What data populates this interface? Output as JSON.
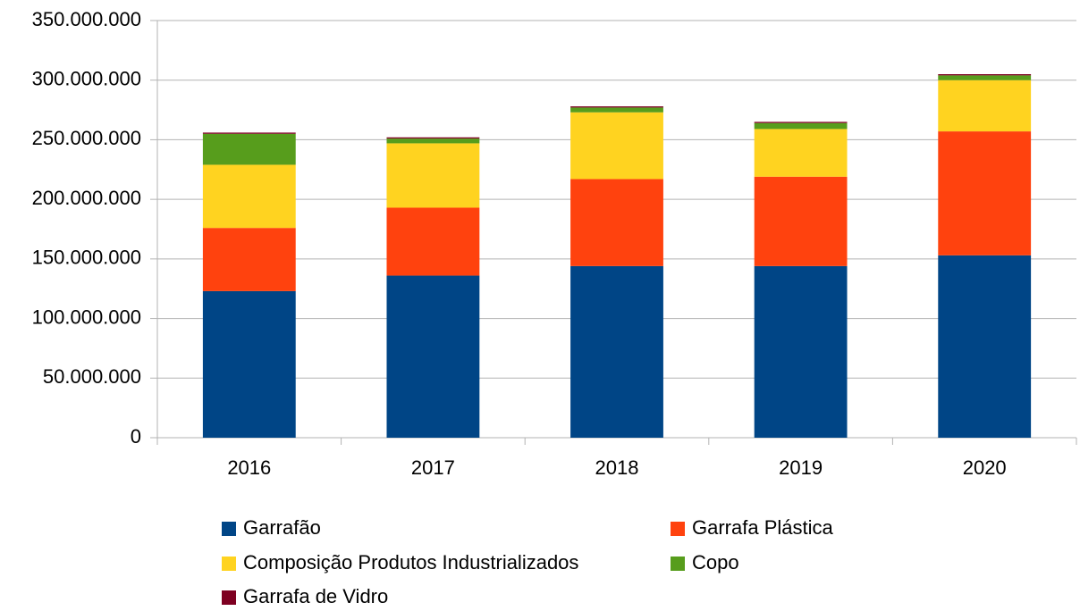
{
  "chart_data": {
    "type": "stacked_bar",
    "categories": [
      "2016",
      "2017",
      "2018",
      "2019",
      "2020"
    ],
    "series": [
      {
        "name": "Garrafão",
        "color": "#004586",
        "values": [
          123000000,
          136000000,
          144000000,
          144000000,
          153000000
        ]
      },
      {
        "name": "Garrafa Plástica",
        "color": "#ff420e",
        "values": [
          53000000,
          57000000,
          73000000,
          75000000,
          104000000
        ]
      },
      {
        "name": "Composição Produtos Industrializados",
        "color": "#ffd320",
        "values": [
          53000000,
          54000000,
          56000000,
          40000000,
          43000000
        ]
      },
      {
        "name": "Copo",
        "color": "#579d1c",
        "values": [
          26000000,
          4000000,
          4000000,
          5000000,
          4000000
        ]
      },
      {
        "name": "Garrafa de Vidro",
        "color": "#7e0021",
        "values": [
          1000000,
          1000000,
          1000000,
          1000000,
          1000000
        ]
      }
    ],
    "ylim": [
      0,
      350000000
    ],
    "yticks": [
      0,
      {
        "value": 50000000,
        "label": "50.000.000"
      },
      {
        "value": 100000000,
        "label": "100.000.000"
      },
      {
        "value": 150000000,
        "label": "150.000.000"
      },
      {
        "value": 200000000,
        "label": "200.000.000"
      },
      {
        "value": 250000000,
        "label": "250.000.000"
      },
      {
        "value": 300000000,
        "label": "300.000.000"
      },
      {
        "value": 350000000,
        "label": "350.000.000"
      }
    ],
    "grid": true
  }
}
